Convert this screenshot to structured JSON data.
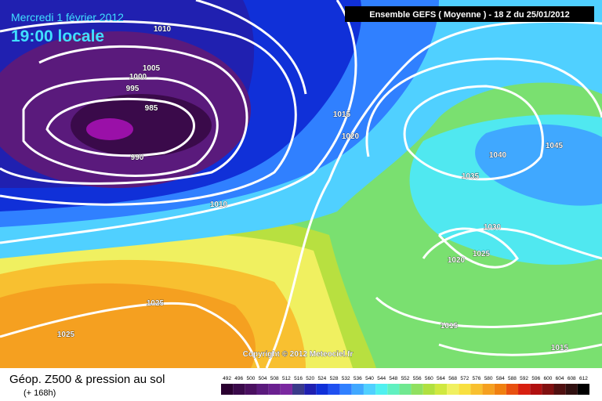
{
  "header": {
    "date": "Mercredi 1 février 2012",
    "time": "19:00 locale",
    "model": "Ensemble GEFS ( Moyenne )  -  18 Z du 25/01/2012"
  },
  "isobar_labels": [
    "1010",
    "1005",
    "1000",
    "995",
    "985",
    "990",
    "1010",
    "1015",
    "1020",
    "1035",
    "1040",
    "1045",
    "1030",
    "1025",
    "1020",
    "1015",
    "1015",
    "1025",
    "1025"
  ],
  "copyright": "Copyright © 2012 Meteociel.fr",
  "footer": {
    "title": "Géop. Z500 & pression au sol",
    "lead": "(+ 168h)"
  },
  "legend": {
    "items": [
      {
        "label": "492",
        "color": "#2a0030"
      },
      {
        "label": "496",
        "color": "#3a0a4a"
      },
      {
        "label": "500",
        "color": "#4a1060"
      },
      {
        "label": "504",
        "color": "#5a1a7c"
      },
      {
        "label": "508",
        "color": "#6a2090"
      },
      {
        "label": "512",
        "color": "#7a28a0"
      },
      {
        "label": "516",
        "color": "#3a3a8a"
      },
      {
        "label": "520",
        "color": "#2020b0"
      },
      {
        "label": "524",
        "color": "#1030d8"
      },
      {
        "label": "528",
        "color": "#2050f0"
      },
      {
        "label": "532",
        "color": "#3080ff"
      },
      {
        "label": "536",
        "color": "#40a8ff"
      },
      {
        "label": "540",
        "color": "#50d0ff"
      },
      {
        "label": "544",
        "color": "#50f0f0"
      },
      {
        "label": "548",
        "color": "#60f0c0"
      },
      {
        "label": "552",
        "color": "#70e890"
      },
      {
        "label": "556",
        "color": "#90e060"
      },
      {
        "label": "560",
        "color": "#b0e040"
      },
      {
        "label": "564",
        "color": "#d0e840"
      },
      {
        "label": "568",
        "color": "#f0f060"
      },
      {
        "label": "572",
        "color": "#f8e040"
      },
      {
        "label": "576",
        "color": "#f8c030"
      },
      {
        "label": "580",
        "color": "#f5a020"
      },
      {
        "label": "584",
        "color": "#f08010"
      },
      {
        "label": "588",
        "color": "#e85010"
      },
      {
        "label": "592",
        "color": "#d82010"
      },
      {
        "label": "596",
        "color": "#b01010"
      },
      {
        "label": "600",
        "color": "#801010"
      },
      {
        "label": "604",
        "color": "#501010"
      },
      {
        "label": "608",
        "color": "#301010"
      },
      {
        "label": "612",
        "color": "#000000"
      }
    ]
  }
}
